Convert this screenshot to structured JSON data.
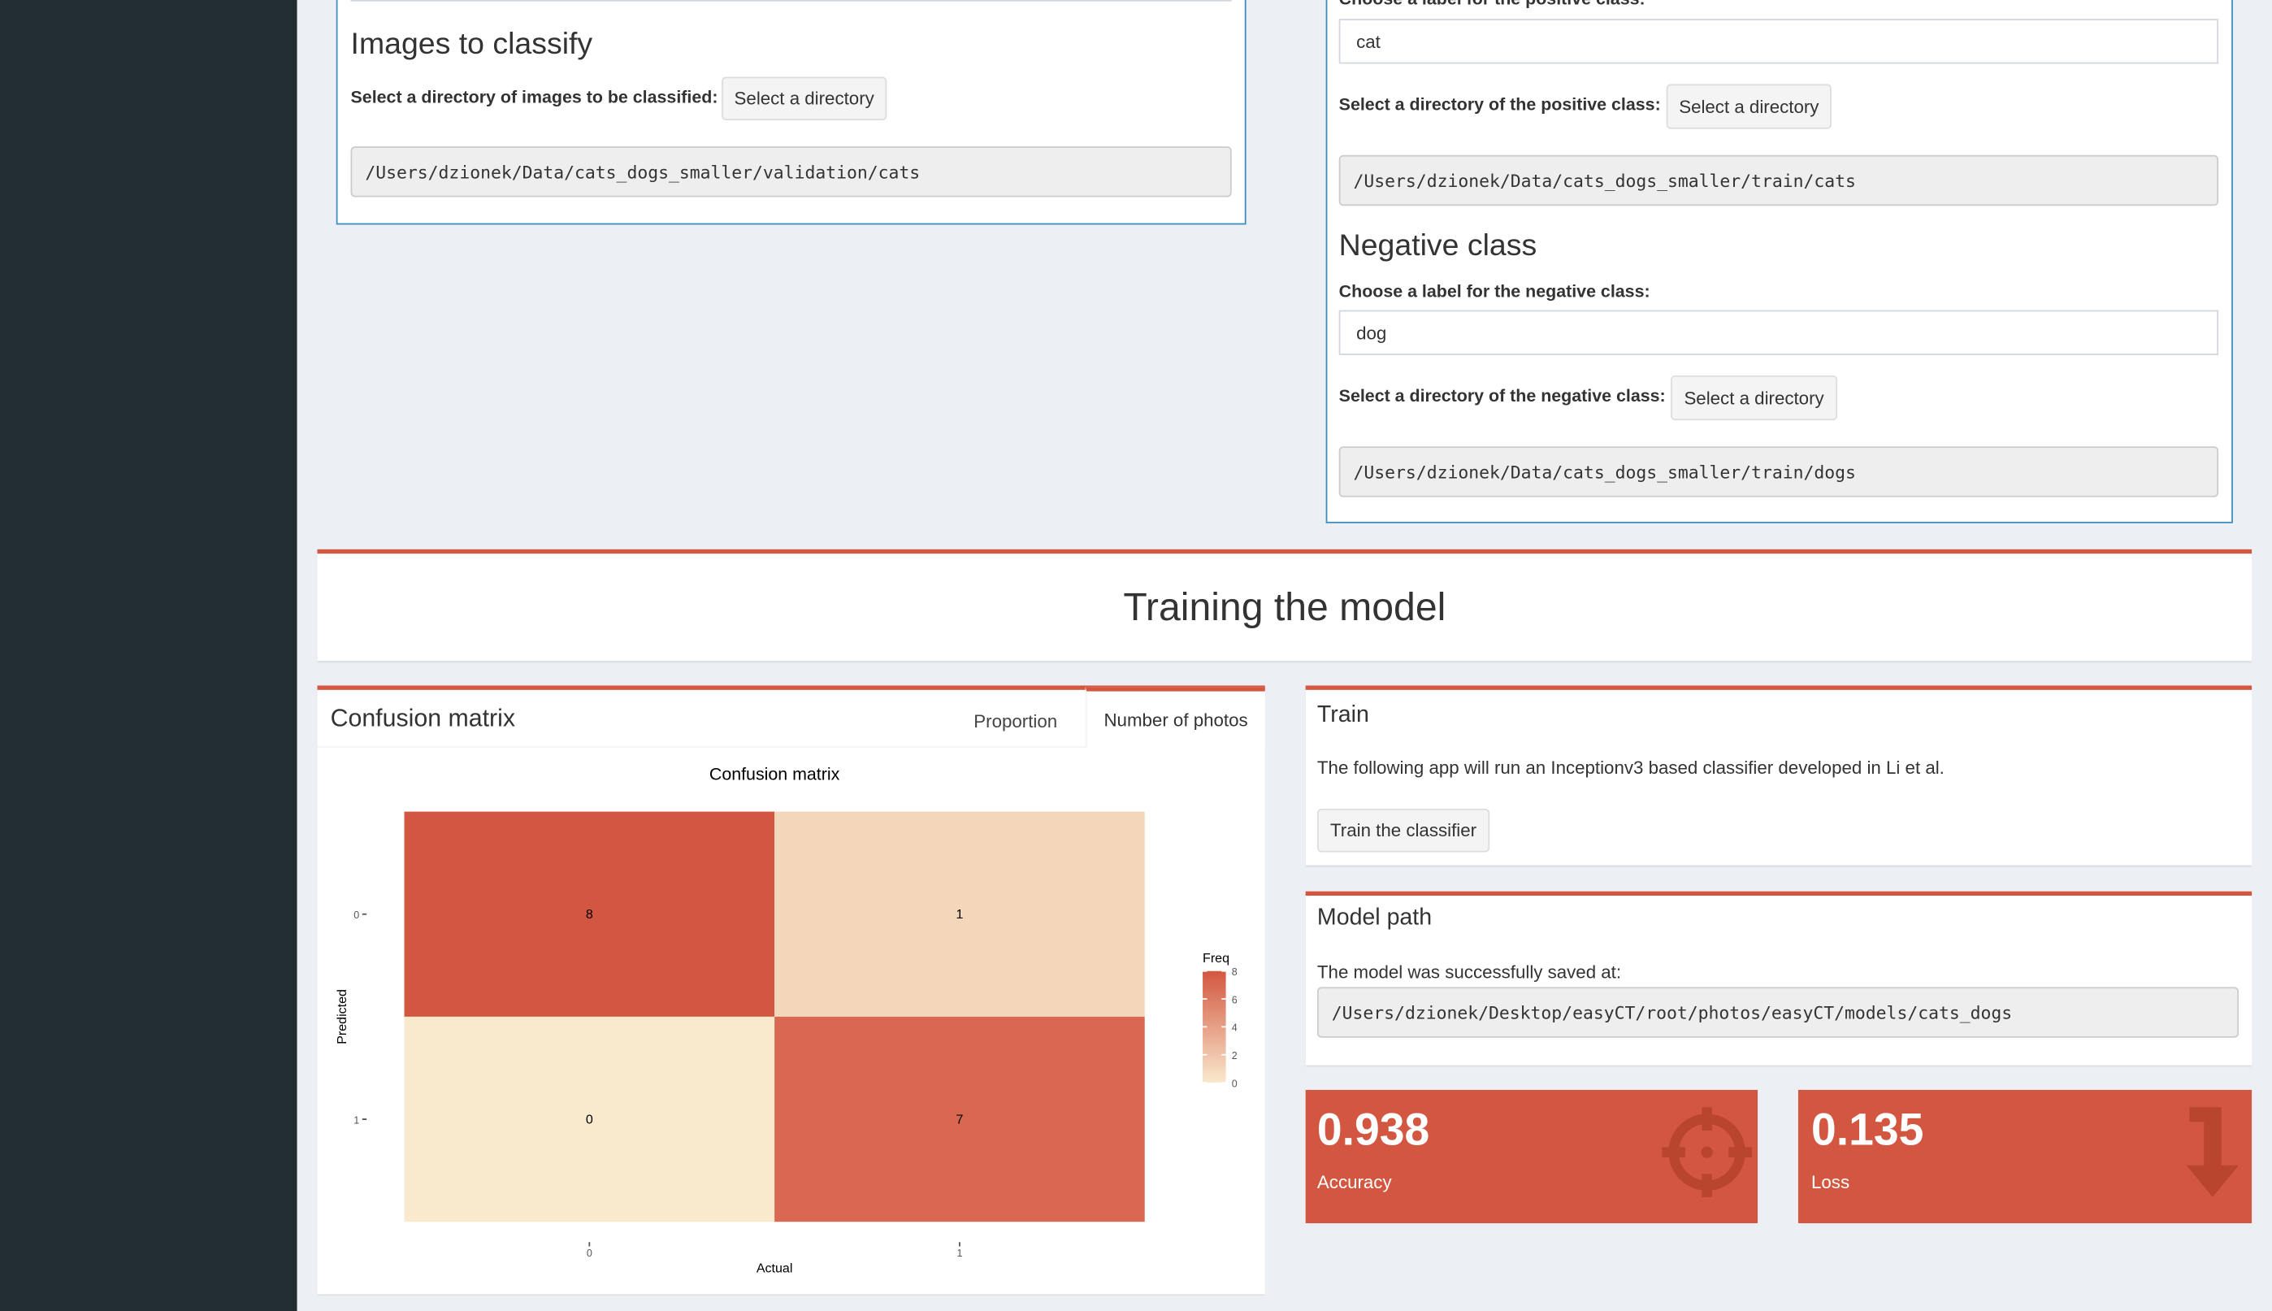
{
  "images_panel": {
    "title": "Images to classify",
    "dir_label": "Select a directory of images to be classified:",
    "button": "Select a directory",
    "path": "/Users/dzionek/Data/cats_dogs_smaller/validation/cats"
  },
  "classes_panel": {
    "positive_label": "Choose a label for the positive class:",
    "positive_value": "cat",
    "positive_dir_label": "Select a directory of the positive class:",
    "positive_button": "Select a directory",
    "positive_path": "/Users/dzionek/Data/cats_dogs_smaller/train/cats",
    "negative_title": "Negative class",
    "negative_label": "Choose a label for the negative class:",
    "negative_value": "dog",
    "negative_dir_label": "Select a directory of the negative class:",
    "negative_button": "Select a directory",
    "negative_path": "/Users/dzionek/Data/cats_dogs_smaller/train/dogs"
  },
  "section_title": "Training the model",
  "confusion_box": {
    "title": "Confusion matrix",
    "tabs": [
      "Proportion",
      "Number of photos"
    ]
  },
  "chart_data": {
    "type": "heatmap",
    "title": "Confusion matrix",
    "x_label": "Actual",
    "y_label": "Predicted",
    "x_categories": [
      "0",
      "1"
    ],
    "y_categories": [
      "0",
      "1"
    ],
    "values": [
      [
        8,
        1
      ],
      [
        0,
        7
      ]
    ],
    "legend_title": "Freq",
    "colorlim": [
      0,
      8
    ],
    "colorticks": [
      0,
      2,
      4,
      6,
      8
    ],
    "colors": [
      "#f9e9cd",
      "#d35640"
    ]
  },
  "train_box": {
    "title": "Train",
    "text": "The following app will run an Inceptionv3 based classifier developed in Li et al.",
    "button": "Train the classifier"
  },
  "model_box": {
    "title": "Model path",
    "text": "The model was successfully saved at:",
    "path": "/Users/dzionek/Desktop/easyCT/root/photos/easyCT/models/cats_dogs"
  },
  "value_boxes": [
    {
      "value": 0.938,
      "label": "Accuracy"
    },
    {
      "value": 0.135,
      "label": "Loss"
    }
  ]
}
